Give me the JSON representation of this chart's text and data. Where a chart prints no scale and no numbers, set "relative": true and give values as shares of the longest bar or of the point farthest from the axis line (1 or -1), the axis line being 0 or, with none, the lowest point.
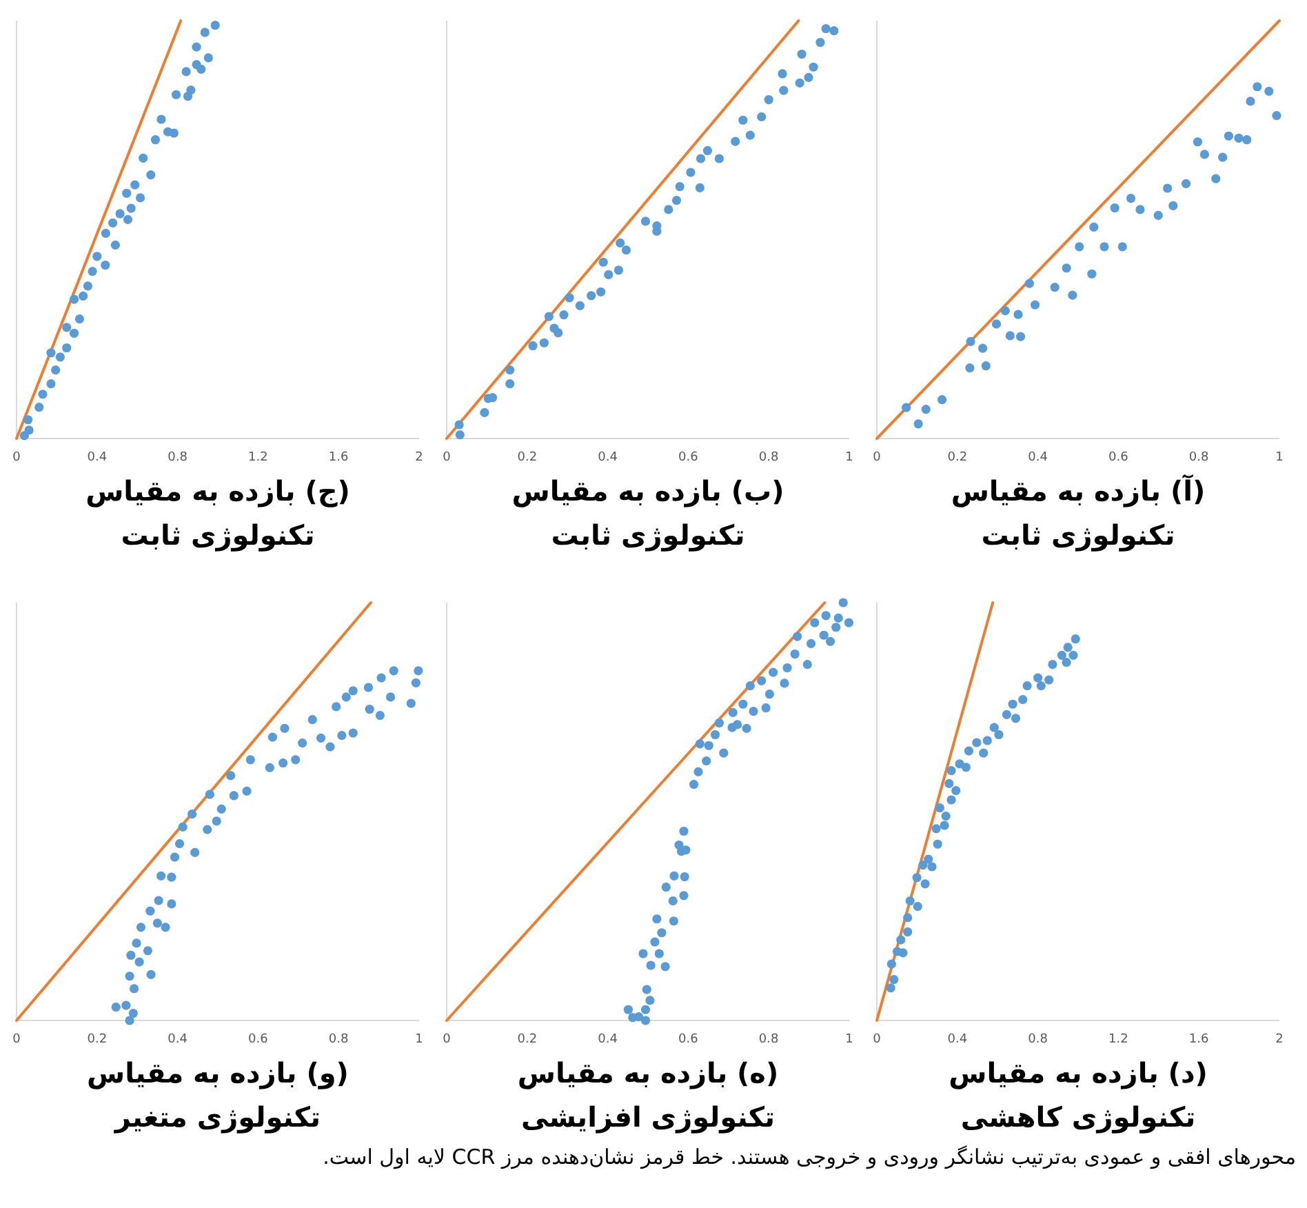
{
  "chart_data": [
    {
      "type": "scatter",
      "title": "(آ) بازده به مقیاس تکنولوژی ثابت",
      "relative": true,
      "tick_labels": "x",
      "xlim": [
        0,
        1
      ],
      "xticks": [
        0,
        0.2,
        0.4,
        0.6,
        0.8,
        1
      ],
      "series": [
        {
          "type": "scatter",
          "marker": "circle",
          "color": "#5b9bd5",
          "x": [
            0.073,
            0.103,
            0.122,
            0.162,
            0.233,
            0.231,
            0.271,
            0.263,
            0.297,
            0.319,
            0.331,
            0.357,
            0.351,
            0.379,
            0.393,
            0.442,
            0.471,
            0.486,
            0.503,
            0.534,
            0.539,
            0.565,
            0.591,
            0.61,
            0.631,
            0.654,
            0.699,
            0.722,
            0.736,
            0.768,
            0.797,
            0.814,
            0.842,
            0.859,
            0.874,
            0.899,
            0.919,
            0.928,
            0.945,
            0.974,
            0.993
          ],
          "values": [
            0.074,
            0.035,
            0.07,
            0.093,
            0.232,
            0.169,
            0.174,
            0.216,
            0.274,
            0.306,
            0.246,
            0.244,
            0.297,
            0.371,
            0.32,
            0.362,
            0.408,
            0.343,
            0.459,
            0.394,
            0.506,
            0.459,
            0.552,
            0.459,
            0.575,
            0.548,
            0.534,
            0.599,
            0.557,
            0.61,
            0.71,
            0.68,
            0.622,
            0.673,
            0.724,
            0.719,
            0.715,
            0.807,
            0.842,
            0.831,
            0.773
          ]
        },
        {
          "type": "line",
          "color": "#ed7d31",
          "x": [
            0,
            1
          ],
          "values": [
            0,
            1
          ]
        }
      ]
    },
    {
      "type": "scatter",
      "title": "(ب) بازده به مقیاس تکنولوژی ثابت",
      "relative": true,
      "tick_labels": "x",
      "xlim": [
        0,
        1
      ],
      "xticks": [
        0,
        0.2,
        0.4,
        0.6,
        0.8,
        1
      ],
      "series": [
        {
          "type": "scatter",
          "marker": "circle",
          "color": "#5b9bd5",
          "x": [
            0.031,
            0.033,
            0.094,
            0.103,
            0.114,
            0.157,
            0.157,
            0.214,
            0.242,
            0.254,
            0.267,
            0.277,
            0.291,
            0.305,
            0.331,
            0.359,
            0.383,
            0.389,
            0.402,
            0.427,
            0.431,
            0.446,
            0.494,
            0.522,
            0.522,
            0.551,
            0.571,
            0.579,
            0.606,
            0.629,
            0.631,
            0.648,
            0.677,
            0.717,
            0.736,
            0.754,
            0.782,
            0.8,
            0.837,
            0.834,
            0.877,
            0.882,
            0.899,
            0.911,
            0.928,
            0.942,
            0.962
          ],
          "values": [
            0.033,
            0.009,
            0.062,
            0.096,
            0.098,
            0.131,
            0.164,
            0.222,
            0.229,
            0.292,
            0.264,
            0.253,
            0.296,
            0.337,
            0.318,
            0.342,
            0.351,
            0.422,
            0.392,
            0.403,
            0.468,
            0.451,
            0.52,
            0.509,
            0.496,
            0.548,
            0.57,
            0.603,
            0.637,
            0.6,
            0.67,
            0.689,
            0.67,
            0.711,
            0.762,
            0.726,
            0.77,
            0.811,
            0.833,
            0.873,
            0.851,
            0.92,
            0.864,
            0.889,
            0.948,
            0.981,
            0.976
          ]
        },
        {
          "type": "line",
          "color": "#ed7d31",
          "x": [
            0,
            0.874
          ],
          "values": [
            0,
            1
          ]
        }
      ]
    },
    {
      "type": "scatter",
      "title": "(ج) بازده به مقیاس تکنولوژی ثابت",
      "relative": true,
      "tick_labels": "x",
      "xlim": [
        0,
        2
      ],
      "xticks": [
        0,
        0.4,
        0.8,
        1.2,
        1.6,
        2
      ],
      "series": [
        {
          "type": "scatter",
          "marker": "circle",
          "color": "#5b9bd5",
          "x": [
            0.039,
            0.062,
            0.057,
            0.112,
            0.13,
            0.171,
            0.194,
            0.171,
            0.217,
            0.249,
            0.249,
            0.286,
            0.313,
            0.286,
            0.331,
            0.354,
            0.377,
            0.4,
            0.441,
            0.443,
            0.491,
            0.478,
            0.514,
            0.553,
            0.569,
            0.547,
            0.588,
            0.615,
            0.629,
            0.667,
            0.69,
            0.719,
            0.752,
            0.782,
            0.793,
            0.851,
            0.866,
            0.843,
            0.894,
            0.917,
            0.894,
            0.953,
            0.936,
            0.987
          ],
          "values": [
            0.007,
            0.02,
            0.045,
            0.075,
            0.106,
            0.131,
            0.164,
            0.205,
            0.195,
            0.217,
            0.266,
            0.252,
            0.286,
            0.333,
            0.341,
            0.365,
            0.4,
            0.436,
            0.415,
            0.491,
            0.463,
            0.516,
            0.538,
            0.524,
            0.551,
            0.587,
            0.607,
            0.576,
            0.671,
            0.631,
            0.715,
            0.764,
            0.734,
            0.731,
            0.823,
            0.819,
            0.834,
            0.878,
            0.895,
            0.884,
            0.937,
            0.911,
            0.972,
            0.989
          ]
        },
        {
          "type": "line",
          "color": "#ed7d31",
          "x": [
            0,
            0.816
          ],
          "values": [
            0,
            1
          ]
        }
      ]
    },
    {
      "type": "scatter",
      "title": "(د) بازده به مقیاس تکنولوژی کاهشی",
      "relative": true,
      "tick_labels": "x",
      "xlim": [
        0,
        2
      ],
      "xticks": [
        0,
        0.4,
        0.8,
        1.2,
        1.6,
        2
      ],
      "series": [
        {
          "type": "scatter",
          "marker": "circle",
          "color": "#5b9bd5",
          "x": [
            0.069,
            0.085,
            0.073,
            0.101,
            0.13,
            0.119,
            0.153,
            0.153,
            0.165,
            0.203,
            0.199,
            0.24,
            0.229,
            0.274,
            0.256,
            0.302,
            0.295,
            0.336,
            0.313,
            0.343,
            0.37,
            0.359,
            0.393,
            0.37,
            0.411,
            0.443,
            0.457,
            0.496,
            0.53,
            0.549,
            0.583,
            0.606,
            0.645,
            0.675,
            0.69,
            0.725,
            0.747,
            0.8,
            0.816,
            0.855,
            0.873,
            0.919,
            0.942,
            0.976,
            0.949,
            0.987
          ],
          "values": [
            0.078,
            0.098,
            0.135,
            0.165,
            0.162,
            0.193,
            0.212,
            0.246,
            0.286,
            0.273,
            0.342,
            0.327,
            0.372,
            0.368,
            0.386,
            0.422,
            0.459,
            0.467,
            0.509,
            0.489,
            0.528,
            0.567,
            0.55,
            0.598,
            0.614,
            0.606,
            0.645,
            0.665,
            0.64,
            0.67,
            0.701,
            0.684,
            0.732,
            0.757,
            0.723,
            0.768,
            0.801,
            0.82,
            0.801,
            0.815,
            0.852,
            0.874,
            0.857,
            0.874,
            0.893,
            0.913
          ]
        },
        {
          "type": "line",
          "color": "#ed7d31",
          "x": [
            0,
            0.576
          ],
          "values": [
            0,
            1
          ]
        }
      ]
    },
    {
      "type": "scatter",
      "title": "(ه) بازده به مقیاس تکنولوژی افزایشی",
      "relative": true,
      "tick_labels": "x",
      "xlim": [
        0,
        1
      ],
      "xticks": [
        0,
        0.2,
        0.4,
        0.6,
        0.8,
        1
      ],
      "series": [
        {
          "type": "scatter",
          "marker": "circle",
          "color": "#5b9bd5",
          "x": [
            0.494,
            0.451,
            0.462,
            0.477,
            0.494,
            0.505,
            0.497,
            0.488,
            0.507,
            0.543,
            0.528,
            0.517,
            0.534,
            0.522,
            0.564,
            0.562,
            0.589,
            0.545,
            0.565,
            0.591,
            0.583,
            0.594,
            0.577,
            0.589,
            0.614,
            0.625,
            0.629,
            0.645,
            0.651,
            0.667,
            0.688,
            0.677,
            0.709,
            0.711,
            0.722,
            0.745,
            0.736,
            0.754,
            0.762,
            0.793,
            0.782,
            0.802,
            0.811,
            0.839,
            0.846,
            0.871,
            0.865,
            0.896,
            0.905,
            0.914,
            0.937,
            0.942,
            0.953,
            0.967,
            0.973,
            0.985,
            0.999
          ],
          "values": [
            0,
            0.026,
            0.007,
            0.009,
            0.026,
            0.048,
            0.074,
            0.16,
            0.132,
            0.129,
            0.16,
            0.188,
            0.21,
            0.243,
            0.238,
            0.286,
            0.299,
            0.319,
            0.346,
            0.344,
            0.405,
            0.408,
            0.42,
            0.453,
            0.565,
            0.595,
            0.662,
            0.621,
            0.658,
            0.684,
            0.64,
            0.712,
            0.701,
            0.737,
            0.708,
            0.699,
            0.757,
            0.801,
            0.74,
            0.748,
            0.813,
            0.781,
            0.833,
            0.807,
            0.844,
            0.919,
            0.877,
            0.852,
            0.902,
            0.952,
            0.922,
            0.969,
            0.907,
            0.941,
            0.963,
            1,
            0.952
          ]
        },
        {
          "type": "line",
          "color": "#ed7d31",
          "x": [
            0,
            0.939
          ],
          "values": [
            0,
            1
          ]
        }
      ]
    },
    {
      "type": "scatter",
      "title": "(و) بازده به مقیاس تکنولوژی متغیر",
      "relative": true,
      "tick_labels": "x",
      "xlim": [
        0,
        1
      ],
      "xticks": [
        0,
        0.2,
        0.4,
        0.6,
        0.8,
        1
      ],
      "annotations": [
        "محورهای افقی و عمودی به‌ترتیب نشانگر ورودی و خروجی هستند. خط قرمز نشان‌دهنده مرز CCR لایه اول است."
      ],
      "series": [
        {
          "type": "scatter",
          "marker": "circle",
          "color": "#5b9bd5",
          "x": [
            0.281,
            0.247,
            0.272,
            0.29,
            0.292,
            0.281,
            0.305,
            0.284,
            0.298,
            0.309,
            0.334,
            0.326,
            0.35,
            0.332,
            0.353,
            0.37,
            0.385,
            0.359,
            0.385,
            0.393,
            0.405,
            0.443,
            0.413,
            0.436,
            0.474,
            0.48,
            0.497,
            0.509,
            0.532,
            0.54,
            0.572,
            0.581,
            0.629,
            0.636,
            0.666,
            0.662,
            0.693,
            0.71,
            0.735,
            0.756,
            0.779,
            0.794,
            0.808,
            0.819,
            0.836,
            0.836,
            0.874,
            0.877,
            0.903,
            0.906,
            0.929,
            0.937,
            0.98,
            0.992,
            0.998
          ],
          "values": [
            0,
            0.032,
            0.036,
            0.017,
            0.076,
            0.106,
            0.14,
            0.156,
            0.185,
            0.223,
            0.11,
            0.167,
            0.233,
            0.262,
            0.287,
            0.223,
            0.279,
            0.346,
            0.343,
            0.391,
            0.423,
            0.402,
            0.463,
            0.494,
            0.457,
            0.541,
            0.477,
            0.506,
            0.586,
            0.538,
            0.549,
            0.624,
            0.605,
            0.678,
            0.699,
            0.616,
            0.624,
            0.664,
            0.72,
            0.676,
            0.655,
            0.751,
            0.682,
            0.774,
            0.688,
            0.789,
            0.797,
            0.745,
            0.73,
            0.82,
            0.774,
            0.837,
            0.759,
            0.808,
            0.837
          ]
        },
        {
          "type": "line",
          "color": "#ed7d31",
          "x": [
            0,
            0.88
          ],
          "values": [
            0,
            1
          ]
        }
      ]
    }
  ]
}
